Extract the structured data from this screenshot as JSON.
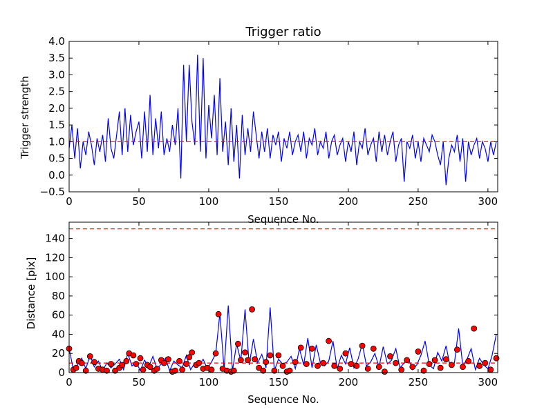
{
  "chart_data": [
    {
      "type": "line",
      "title": "Trigger ratio",
      "xlabel": "Sequence No.",
      "ylabel": "Trigger strength",
      "xlim": [
        0,
        307
      ],
      "ylim": [
        -0.5,
        4.0
      ],
      "xticks": [
        0,
        50,
        100,
        150,
        200,
        250,
        300
      ],
      "yticks": [
        -0.5,
        0.0,
        0.5,
        1.0,
        1.5,
        2.0,
        2.5,
        3.0,
        3.5,
        4.0
      ],
      "ytick_labels": [
        "−0.5",
        "0.0",
        "0.5",
        "1.0",
        "1.5",
        "2.0",
        "2.5",
        "3.0",
        "3.5",
        "4.0"
      ],
      "grid": false,
      "series": [
        {
          "style": "line",
          "color": "#0000ff",
          "x": [
            0,
            2,
            4,
            6,
            8,
            10,
            12,
            14,
            16,
            18,
            20,
            22,
            24,
            26,
            28,
            30,
            32,
            34,
            36,
            38,
            40,
            42,
            44,
            46,
            48,
            50,
            52,
            54,
            56,
            58,
            60,
            62,
            64,
            66,
            68,
            70,
            72,
            74,
            76,
            78,
            80,
            82,
            84,
            86,
            88,
            90,
            92,
            94,
            96,
            98,
            100,
            102,
            104,
            106,
            108,
            110,
            112,
            114,
            116,
            118,
            120,
            122,
            124,
            126,
            128,
            130,
            132,
            134,
            136,
            138,
            140,
            142,
            144,
            146,
            148,
            150,
            152,
            154,
            156,
            158,
            160,
            162,
            164,
            166,
            168,
            170,
            172,
            174,
            176,
            178,
            180,
            182,
            184,
            186,
            188,
            190,
            192,
            194,
            196,
            198,
            200,
            202,
            204,
            206,
            208,
            210,
            212,
            214,
            216,
            218,
            220,
            222,
            224,
            226,
            228,
            230,
            232,
            234,
            236,
            238,
            240,
            242,
            244,
            246,
            248,
            250,
            252,
            254,
            256,
            258,
            260,
            262,
            264,
            266,
            268,
            270,
            272,
            274,
            276,
            278,
            280,
            282,
            284,
            286,
            288,
            290,
            292,
            294,
            296,
            298,
            300,
            302,
            304,
            306
          ],
          "y": [
            0.8,
            1.5,
            0.5,
            1.4,
            0.2,
            1.0,
            0.6,
            1.3,
            0.9,
            0.3,
            1.1,
            0.7,
            1.2,
            0.4,
            1.7,
            0.8,
            0.5,
            1.2,
            1.9,
            0.6,
            2.0,
            0.7,
            1.8,
            0.9,
            1.3,
            1.6,
            0.5,
            1.9,
            0.7,
            2.4,
            0.6,
            1.7,
            0.8,
            1.9,
            0.6,
            1.1,
            0.7,
            1.5,
            0.9,
            2.0,
            -0.1,
            3.3,
            1.0,
            3.3,
            1.6,
            0.9,
            3.6,
            0.7,
            3.5,
            0.5,
            2.1,
            1.1,
            2.4,
            0.6,
            2.9,
            0.7,
            1.6,
            0.3,
            2.0,
            0.4,
            1.5,
            -0.1,
            1.8,
            0.6,
            1.4,
            0.7,
            1.9,
            1.2,
            0.5,
            1.3,
            0.7,
            1.4,
            0.5,
            1.2,
            0.9,
            1.3,
            0.4,
            1.1,
            0.8,
            1.3,
            0.6,
            1.0,
            1.2,
            0.7,
            1.3,
            0.5,
            1.1,
            0.9,
            1.4,
            0.6,
            1.0,
            0.8,
            1.3,
            0.5,
            1.0,
            1.2,
            0.6,
            0.9,
            1.1,
            0.4,
            1.0,
            0.7,
            1.3,
            0.3,
            1.0,
            0.8,
            1.4,
            0.6,
            0.9,
            1.1,
            0.4,
            1.3,
            0.7,
            1.2,
            0.6,
            1.0,
            1.3,
            0.4,
            0.9,
            1.1,
            -0.2,
            1.0,
            0.8,
            1.2,
            0.5,
            1.0,
            0.4,
            1.1,
            0.9,
            0.7,
            1.2,
            1.0,
            0.6,
            0.3,
            1.0,
            -0.3,
            0.5,
            0.9,
            0.7,
            1.2,
            0.4,
            1.1,
            -0.2,
            1.0,
            0.6,
            0.9,
            1.1,
            0.5,
            1.0,
            0.8,
            0.4,
            1.0,
            0.6,
            1.0
          ]
        },
        {
          "style": "dashed-line",
          "color": "#ff0000",
          "x": [
            0,
            307
          ],
          "y": [
            1.0,
            1.0
          ]
        }
      ]
    },
    {
      "type": "line",
      "title": "",
      "xlabel": "Sequence No.",
      "ylabel": "Distance [pix]",
      "xlim": [
        0,
        307
      ],
      "ylim": [
        0,
        157
      ],
      "xticks": [
        0,
        50,
        100,
        150,
        200,
        250,
        300
      ],
      "yticks": [
        0,
        20,
        40,
        60,
        80,
        100,
        120,
        140
      ],
      "grid": false,
      "series": [
        {
          "style": "line",
          "color": "#0000ff",
          "x": [
            0,
            3,
            6,
            9,
            12,
            15,
            18,
            21,
            24,
            27,
            30,
            33,
            36,
            39,
            42,
            45,
            48,
            51,
            54,
            57,
            60,
            63,
            66,
            69,
            72,
            75,
            78,
            81,
            84,
            87,
            90,
            93,
            96,
            99,
            102,
            105,
            108,
            111,
            114,
            117,
            120,
            123,
            126,
            129,
            132,
            135,
            138,
            141,
            144,
            147,
            150,
            153,
            156,
            159,
            162,
            165,
            168,
            171,
            174,
            177,
            180,
            183,
            186,
            189,
            192,
            195,
            198,
            201,
            204,
            207,
            210,
            213,
            216,
            219,
            222,
            225,
            228,
            231,
            234,
            237,
            240,
            243,
            246,
            249,
            252,
            255,
            258,
            261,
            264,
            267,
            270,
            273,
            276,
            279,
            282,
            285,
            288,
            291,
            294,
            297,
            300,
            303,
            306
          ],
          "y": [
            25,
            3,
            8,
            15,
            4,
            18,
            6,
            12,
            2,
            10,
            5,
            9,
            14,
            3,
            20,
            7,
            11,
            2,
            13,
            6,
            17,
            4,
            9,
            15,
            2,
            12,
            8,
            5,
            18,
            3,
            10,
            7,
            14,
            4,
            11,
            20,
            62,
            3,
            70,
            2,
            30,
            12,
            66,
            8,
            35,
            10,
            19,
            5,
            68,
            2,
            14,
            9,
            11,
            17,
            4,
            25,
            8,
            36,
            5,
            29,
            10,
            7,
            12,
            33,
            4,
            18,
            9,
            26,
            5,
            14,
            30,
            7,
            11,
            20,
            6,
            27,
            9,
            13,
            25,
            5,
            10,
            15,
            3,
            8,
            18,
            33,
            8,
            4,
            21,
            12,
            28,
            6,
            10,
            46,
            7,
            14,
            25,
            3,
            15,
            8,
            4,
            18,
            40
          ]
        },
        {
          "style": "markers",
          "color": "#ff0000",
          "edge": "#000000",
          "x": [
            0,
            3,
            5,
            7,
            9,
            12,
            15,
            18,
            21,
            24,
            27,
            30,
            33,
            36,
            38,
            41,
            43,
            46,
            48,
            51,
            53,
            56,
            58,
            61,
            63,
            66,
            68,
            71,
            74,
            76,
            79,
            81,
            84,
            86,
            88,
            91,
            93,
            96,
            99,
            102,
            105,
            107,
            110,
            113,
            116,
            118,
            121,
            123,
            126,
            128,
            131,
            133,
            136,
            139,
            141,
            144,
            147,
            150,
            153,
            156,
            158,
            162,
            166,
            170,
            174,
            178,
            182,
            186,
            190,
            194,
            198,
            202,
            206,
            210,
            214,
            218,
            222,
            226,
            230,
            234,
            238,
            242,
            246,
            250,
            254,
            258,
            262,
            266,
            270,
            274,
            278,
            282,
            286,
            290,
            294,
            298,
            302,
            306
          ],
          "y": [
            25,
            3,
            5,
            12,
            10,
            2,
            17,
            11,
            4,
            3,
            2,
            9,
            2,
            5,
            8,
            12,
            20,
            18,
            9,
            15,
            3,
            8,
            6,
            2,
            4,
            13,
            10,
            14,
            1,
            2,
            12,
            3,
            9,
            16,
            21,
            8,
            10,
            4,
            5,
            3,
            20,
            61,
            4,
            2,
            1,
            2,
            30,
            13,
            21,
            13,
            66,
            14,
            5,
            2,
            11,
            18,
            2,
            18,
            7,
            1,
            2,
            11,
            26,
            9,
            25,
            7,
            10,
            33,
            7,
            4,
            20,
            9,
            7,
            28,
            4,
            25,
            6,
            1,
            17,
            10,
            3,
            13,
            6,
            22,
            2,
            9,
            13,
            5,
            14,
            8,
            24,
            6,
            12,
            46,
            7,
            10,
            3,
            15
          ]
        },
        {
          "style": "dashed-line",
          "color": "#ff0000",
          "x": [
            0,
            307
          ],
          "y": [
            150,
            150
          ]
        },
        {
          "style": "dashed-line",
          "color": "#ff0000",
          "x": [
            0,
            307
          ],
          "y": [
            10,
            10
          ]
        }
      ]
    }
  ]
}
